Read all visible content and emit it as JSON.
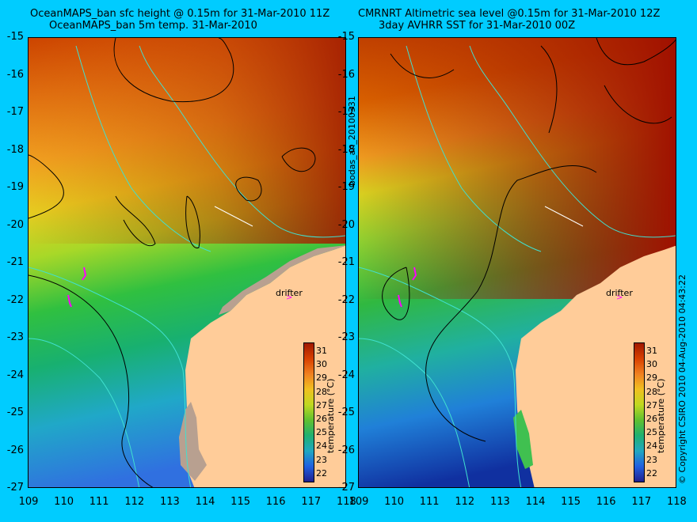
{
  "left_panel": {
    "title_line1": "OceanMAPS_ban sfc height @ 0.15m for 31-Mar-2010 11Z",
    "title_line2": "OceanMAPS_ban 5m temp. 31-Mar-2010"
  },
  "right_panel": {
    "title_line1": "CMRNRT Altimetric sea level  @0.15m  for 31-Mar-2010 12Z",
    "title_line2": "3day AVHRR SST for 31-Mar-2010 00Z"
  },
  "y_axis_labels": [
    "-15",
    "-16",
    "-17",
    "-18",
    "-19",
    "-20",
    "-21",
    "-22",
    "-23",
    "-24",
    "-25",
    "-26",
    "-27"
  ],
  "x_axis_labels": [
    "109",
    "110",
    "111",
    "112",
    "113",
    "114",
    "115",
    "116",
    "117",
    "118"
  ],
  "colorbar": {
    "ticks": [
      "31",
      "30",
      "29",
      "28",
      "27",
      "26",
      "25",
      "24",
      "23",
      "22"
    ],
    "label": "temperature (°C)"
  },
  "drifter_label": "drifter",
  "side_label": "bodas_an_20100331",
  "copyright": "© Copyright CSIRO 2010   04-Aug-2010 04:43:22",
  "colors": {
    "background": "#00ccff",
    "land": "#ffcc99",
    "contour": "#000000",
    "bathymetry": "#40e0d0",
    "drifter": "#ff00ff"
  }
}
